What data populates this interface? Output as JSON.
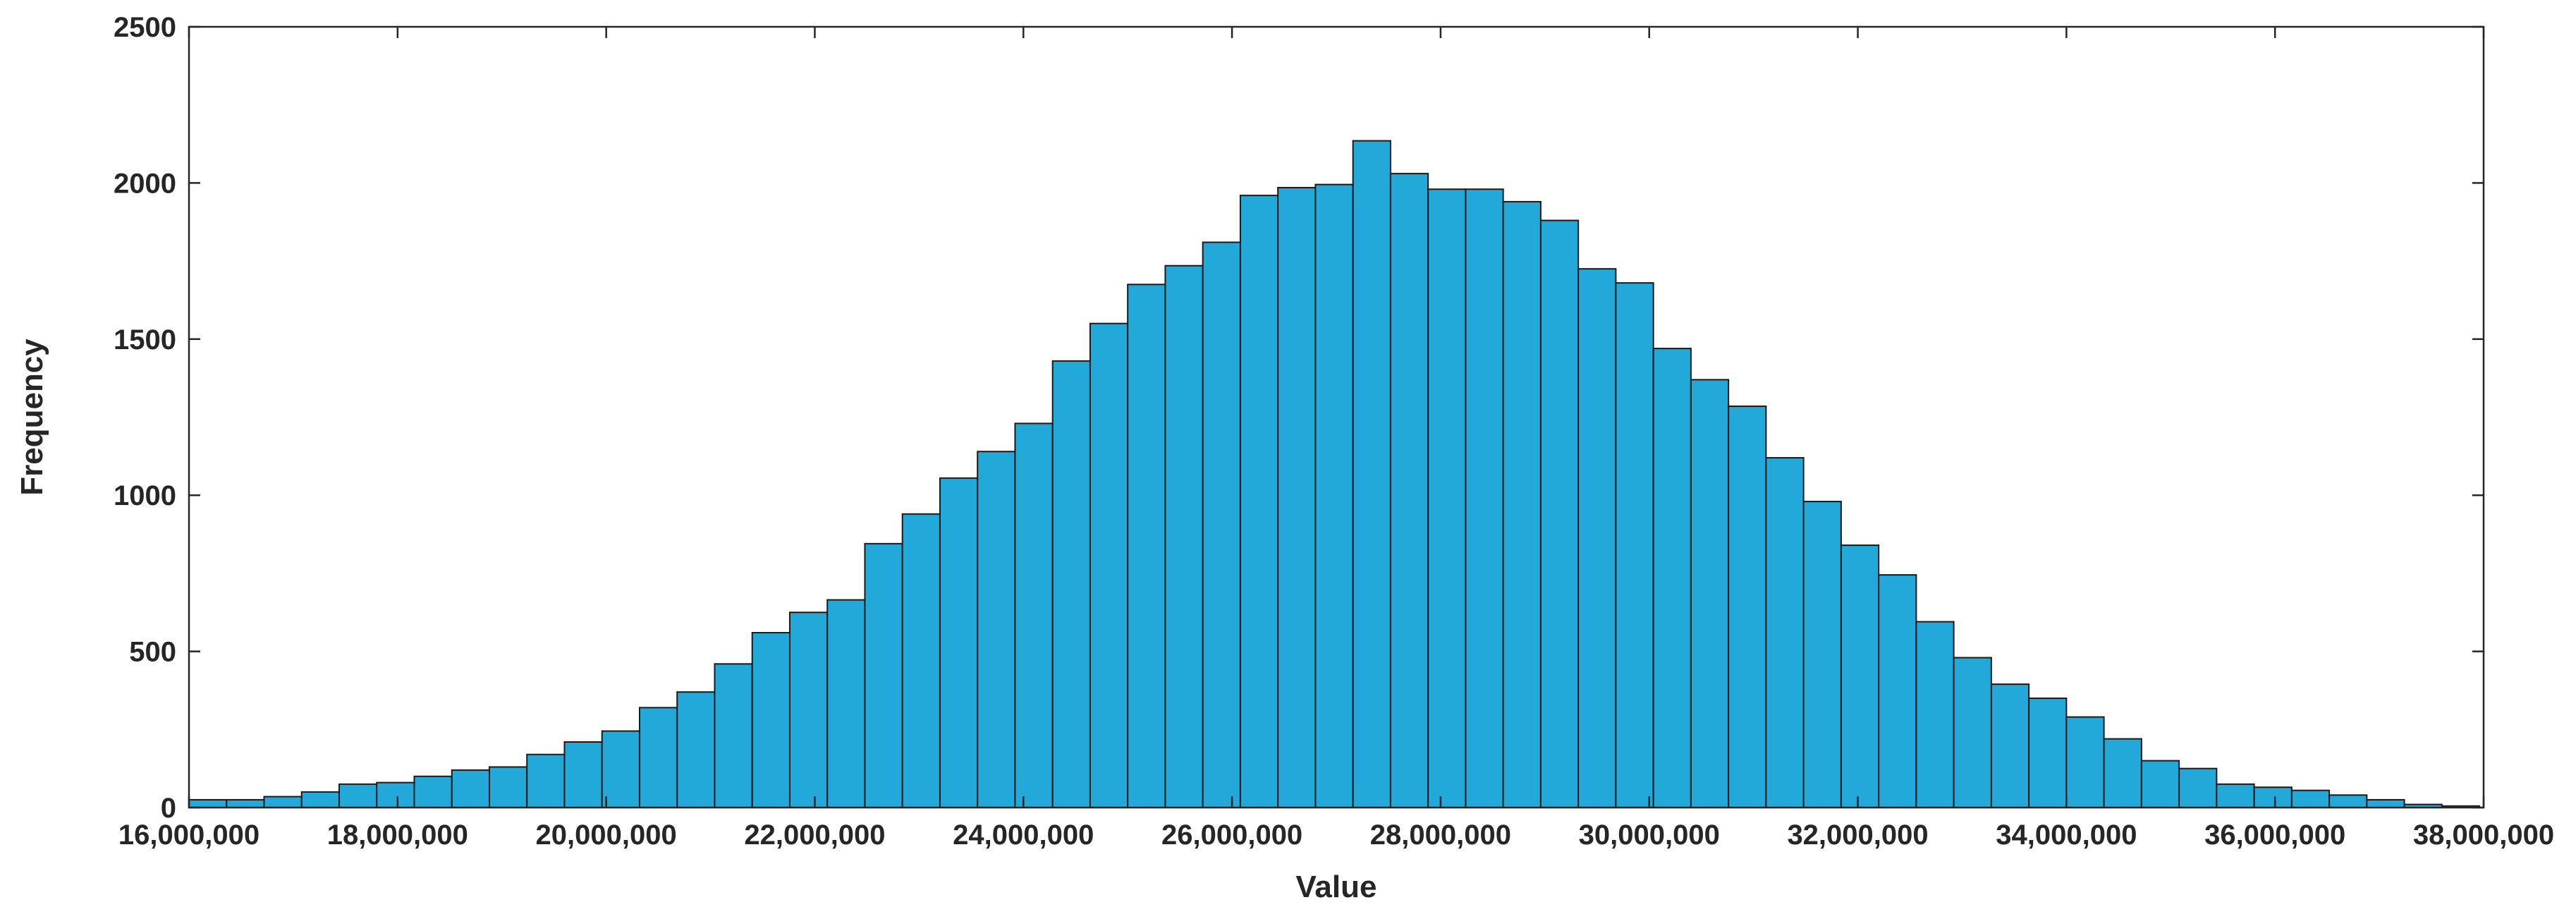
{
  "chart_data": {
    "type": "bar",
    "subtype": "histogram",
    "title": "",
    "xlabel": "Value",
    "ylabel": "Frequency",
    "xlim": [
      16000000,
      38000000
    ],
    "ylim": [
      0,
      2500
    ],
    "bin_start": 16000000,
    "bin_width": 360000,
    "x_ticks": [
      16000000,
      18000000,
      20000000,
      22000000,
      24000000,
      26000000,
      28000000,
      30000000,
      32000000,
      34000000,
      36000000,
      38000000
    ],
    "x_tick_labels": [
      "16,000,000",
      "18,000,000",
      "20,000,000",
      "22,000,000",
      "24,000,000",
      "26,000,000",
      "28,000,000",
      "30,000,000",
      "32,000,000",
      "34,000,000",
      "36,000,000",
      "38,000,000"
    ],
    "y_ticks": [
      0,
      500,
      1000,
      1500,
      2000,
      2500
    ],
    "y_tick_labels": [
      "0",
      "500",
      "1000",
      "1500",
      "2000",
      "2500"
    ],
    "values": [
      25,
      25,
      35,
      50,
      75,
      80,
      100,
      120,
      130,
      170,
      210,
      245,
      320,
      370,
      460,
      560,
      625,
      665,
      845,
      940,
      1055,
      1140,
      1230,
      1430,
      1550,
      1675,
      1735,
      1810,
      1960,
      1985,
      1995,
      2135,
      2030,
      1980,
      1980,
      1940,
      1880,
      1725,
      1680,
      1470,
      1370,
      1285,
      1120,
      980,
      840,
      745,
      595,
      480,
      395,
      350,
      290,
      220,
      150,
      125,
      75,
      65,
      55,
      40,
      25,
      10,
      5,
      0
    ],
    "bar_color": "#22a8d9",
    "edge_color": "#1a1a1a",
    "grid": false
  }
}
